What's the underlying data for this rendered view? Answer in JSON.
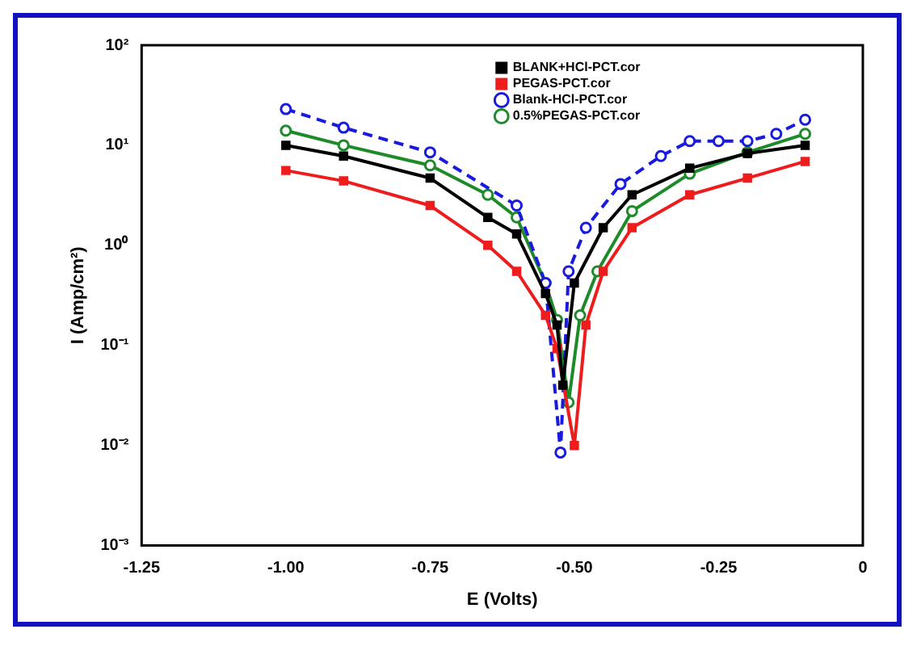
{
  "chart_data": {
    "type": "line",
    "xlabel": "E (Volts)",
    "ylabel": "I (Amp/cm²)",
    "log": "y",
    "xlim": [
      -1.25,
      0
    ],
    "xticks": [
      {
        "value": -1.25,
        "label": "-1.25"
      },
      {
        "value": -1,
        "label": "-1.00"
      },
      {
        "value": -0.75,
        "label": "-0.75"
      },
      {
        "value": -0.5,
        "label": "-0.50"
      },
      {
        "value": -0.25,
        "label": "-0.25"
      },
      0
    ],
    "ylim": [
      0.001,
      100
    ],
    "yticks": [
      {
        "value": 0.001,
        "label": "10⁻³"
      },
      {
        "value": 0.01,
        "label": "10⁻²"
      },
      {
        "value": 0.1,
        "label": "10⁻¹"
      },
      {
        "value": 1,
        "label": "10⁰"
      },
      {
        "value": 10,
        "label": "10¹"
      },
      {
        "value": 100,
        "label": "10²"
      }
    ],
    "grid": false,
    "legend": "top",
    "series": [
      {
        "name": "BLANK+HCl-PCT.cor",
        "color": "#000000",
        "marker": "square",
        "x": [
          -1.0,
          -0.9,
          -0.75,
          -0.65,
          -0.6,
          -0.55,
          -0.53,
          -0.52,
          -0.5,
          -0.45,
          -0.4,
          -0.3,
          -0.2,
          -0.1
        ],
        "values": [
          10,
          7.8,
          4.7,
          1.9,
          1.3,
          0.33,
          0.16,
          0.04,
          0.42,
          1.5,
          3.2,
          5.9,
          8.3,
          10
        ]
      },
      {
        "name": "PEGAS-PCT.cor",
        "color": "#ee1c1c",
        "marker": "square",
        "x": [
          -1.0,
          -0.9,
          -0.75,
          -0.65,
          -0.6,
          -0.55,
          -0.53,
          -0.5,
          -0.48,
          -0.45,
          -0.4,
          -0.3,
          -0.2,
          -0.1
        ],
        "values": [
          5.6,
          4.4,
          2.5,
          1.0,
          0.55,
          0.2,
          0.093,
          0.01,
          0.16,
          0.55,
          1.5,
          3.2,
          4.7,
          6.9
        ]
      },
      {
        "name": "Blank-HCl-PCT.cor",
        "color": "#1a1adf",
        "marker": "circle",
        "line_style": "dashed",
        "x": [
          -1.0,
          -0.9,
          -0.75,
          -0.6,
          -0.55,
          -0.524,
          -0.51,
          -0.48,
          -0.42,
          -0.35,
          -0.3,
          -0.25,
          -0.2,
          -0.15,
          -0.1
        ],
        "values": [
          23,
          15,
          8.5,
          2.5,
          0.42,
          0.0085,
          0.55,
          1.5,
          4.1,
          7.8,
          11,
          11,
          11,
          13,
          18
        ]
      },
      {
        "name": "0.5%PEGAS-PCT.cor",
        "color": "#1e8a2a",
        "marker": "circle",
        "x": [
          -1.0,
          -0.9,
          -0.75,
          -0.65,
          -0.6,
          -0.55,
          -0.53,
          -0.51,
          -0.49,
          -0.46,
          -0.4,
          -0.3,
          -0.2,
          -0.1
        ],
        "values": [
          14,
          10,
          6.3,
          3.2,
          1.9,
          0.42,
          0.18,
          0.027,
          0.2,
          0.55,
          2.2,
          5.2,
          8.5,
          13
        ]
      }
    ]
  }
}
